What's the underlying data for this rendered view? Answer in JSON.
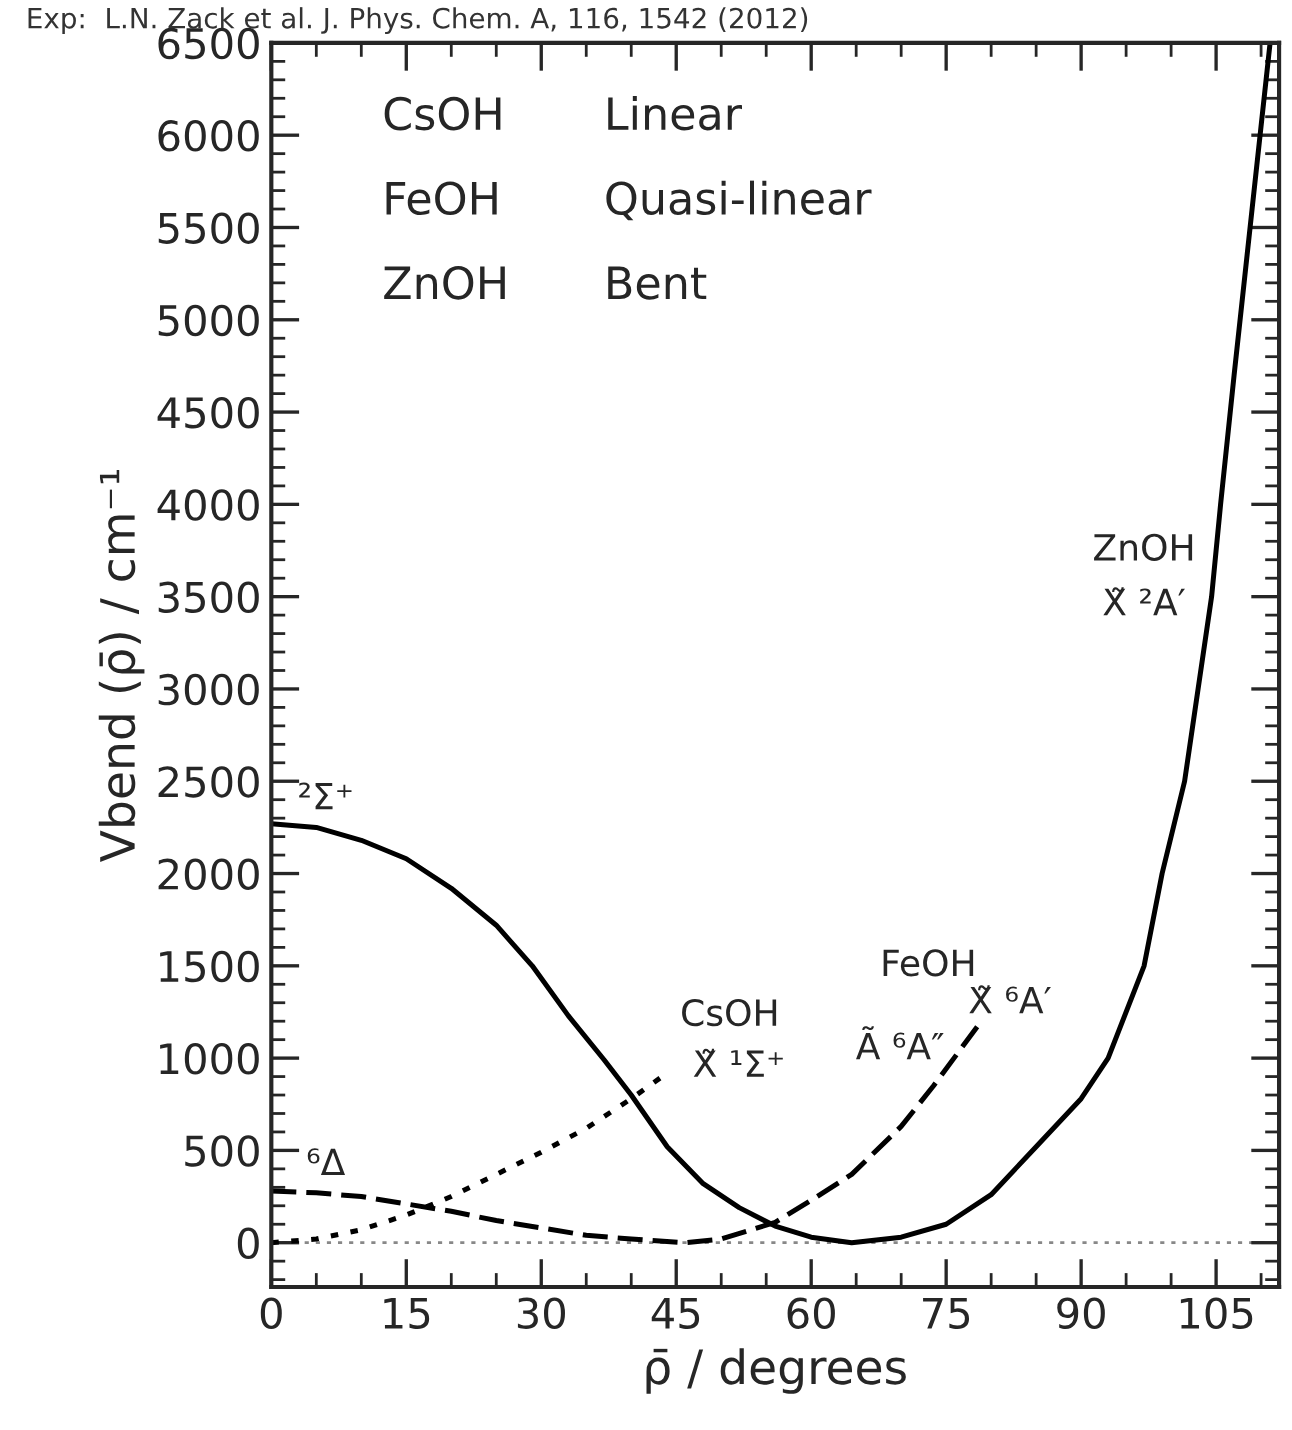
{
  "chart_data": {
    "type": "line",
    "xlabel": "ρ̄ / degrees",
    "ylabel": "Vbend (ρ̄) / cm⁻¹",
    "xlim": [
      0,
      112
    ],
    "ylim": [
      -240,
      6500
    ],
    "xticks": [
      0,
      15,
      30,
      45,
      60,
      75,
      90,
      105,
      {
        "value": 5,
        "label": null
      },
      {
        "value": 10,
        "label": null
      },
      {
        "value": 20,
        "label": null
      },
      {
        "value": 25,
        "label": null
      },
      {
        "value": 35,
        "label": null
      },
      {
        "value": 40,
        "label": null
      },
      {
        "value": 50,
        "label": null
      },
      {
        "value": 55,
        "label": null
      },
      {
        "value": 65,
        "label": null
      },
      {
        "value": 70,
        "label": null
      },
      {
        "value": 80,
        "label": null
      },
      {
        "value": 85,
        "label": null
      },
      {
        "value": 95,
        "label": null
      },
      {
        "value": 100,
        "label": null
      },
      {
        "value": 110,
        "label": null
      }
    ],
    "yticks": [
      0,
      500,
      1000,
      1500,
      2000,
      2500,
      3000,
      3500,
      4000,
      4500,
      5000,
      5500,
      6000,
      6500,
      {
        "value": -200,
        "label": null
      },
      {
        "value": -100,
        "label": null
      },
      {
        "value": 100,
        "label": null
      },
      {
        "value": 200,
        "label": null
      },
      {
        "value": 300,
        "label": null
      },
      {
        "value": 400,
        "label": null
      },
      {
        "value": 600,
        "label": null
      },
      {
        "value": 700,
        "label": null
      },
      {
        "value": 800,
        "label": null
      },
      {
        "value": 900,
        "label": null
      },
      {
        "value": 1100,
        "label": null
      },
      {
        "value": 1200,
        "label": null
      },
      {
        "value": 1300,
        "label": null
      },
      {
        "value": 1400,
        "label": null
      },
      {
        "value": 1600,
        "label": null
      },
      {
        "value": 1700,
        "label": null
      },
      {
        "value": 1800,
        "label": null
      },
      {
        "value": 1900,
        "label": null
      },
      {
        "value": 2100,
        "label": null
      },
      {
        "value": 2200,
        "label": null
      },
      {
        "value": 2300,
        "label": null
      },
      {
        "value": 2400,
        "label": null
      },
      {
        "value": 2600,
        "label": null
      },
      {
        "value": 2700,
        "label": null
      },
      {
        "value": 2800,
        "label": null
      },
      {
        "value": 2900,
        "label": null
      },
      {
        "value": 3100,
        "label": null
      },
      {
        "value": 3200,
        "label": null
      },
      {
        "value": 3300,
        "label": null
      },
      {
        "value": 3400,
        "label": null
      },
      {
        "value": 3600,
        "label": null
      },
      {
        "value": 3700,
        "label": null
      },
      {
        "value": 3800,
        "label": null
      },
      {
        "value": 3900,
        "label": null
      },
      {
        "value": 4100,
        "label": null
      },
      {
        "value": 4200,
        "label": null
      },
      {
        "value": 4300,
        "label": null
      },
      {
        "value": 4400,
        "label": null
      },
      {
        "value": 4600,
        "label": null
      },
      {
        "value": 4700,
        "label": null
      },
      {
        "value": 4800,
        "label": null
      },
      {
        "value": 4900,
        "label": null
      },
      {
        "value": 5100,
        "label": null
      },
      {
        "value": 5200,
        "label": null
      },
      {
        "value": 5300,
        "label": null
      },
      {
        "value": 5400,
        "label": null
      },
      {
        "value": 5600,
        "label": null
      },
      {
        "value": 5700,
        "label": null
      },
      {
        "value": 5800,
        "label": null
      },
      {
        "value": 5900,
        "label": null
      },
      {
        "value": 6100,
        "label": null
      },
      {
        "value": 6200,
        "label": null
      },
      {
        "value": 6300,
        "label": null
      },
      {
        "value": 6400,
        "label": null
      }
    ],
    "grid": false,
    "legend": false,
    "marker": "none",
    "series": [
      {
        "color": "#000000",
        "line_style": "solid",
        "x": [
          0,
          5,
          10,
          15,
          20,
          25,
          29,
          33,
          37,
          40,
          44,
          48,
          52,
          56,
          60,
          64.5,
          70,
          75,
          80,
          85,
          90,
          93,
          97,
          99,
          101.5,
          103,
          104.5,
          105.5,
          107,
          109,
          111
        ],
        "values": [
          2270,
          2250,
          2180,
          2080,
          1920,
          1720,
          1500,
          1230,
          990,
          800,
          520,
          320,
          190,
          90,
          30,
          0,
          30,
          100,
          260,
          520,
          780,
          1000,
          1500,
          2000,
          2500,
          3000,
          3500,
          4000,
          4700,
          5600,
          6500
        ]
      },
      {
        "color": "#000000",
        "line_style": "dotted",
        "x": [
          0,
          5,
          10,
          15,
          20,
          25,
          30,
          35,
          40,
          44
        ],
        "values": [
          0,
          20,
          70,
          150,
          250,
          370,
          490,
          620,
          780,
          920
        ]
      },
      {
        "color": "#000000",
        "line_style": "dashed",
        "x": [
          0,
          5,
          10,
          15,
          20,
          25,
          30,
          35,
          40,
          46,
          50,
          56,
          60,
          64.5,
          70,
          73.6,
          78.6
        ],
        "values": [
          280,
          270,
          250,
          210,
          170,
          120,
          80,
          40,
          20,
          0,
          20,
          110,
          230,
          370,
          630,
          850,
          1180
        ]
      }
    ],
    "ref_lines": [
      {
        "axis": "y",
        "value": 0,
        "color": "#888888",
        "line_style": "dotted"
      }
    ],
    "annotations": [
      "Exp:  L.N. Zack et al. J. Phys. Chem. A, 116, 1542 (2012)",
      "CsOH",
      "Linear",
      "FeOH",
      "Quasi-linear",
      "ZnOH",
      "Bent",
      "²Σ⁺",
      "⁶Δ",
      "CsOH",
      "X̃ ¹Σ⁺",
      "FeOH",
      "X̃ ⁶A′",
      "Ã ⁶A″",
      "ZnOH",
      "X̃ ²A′"
    ]
  }
}
